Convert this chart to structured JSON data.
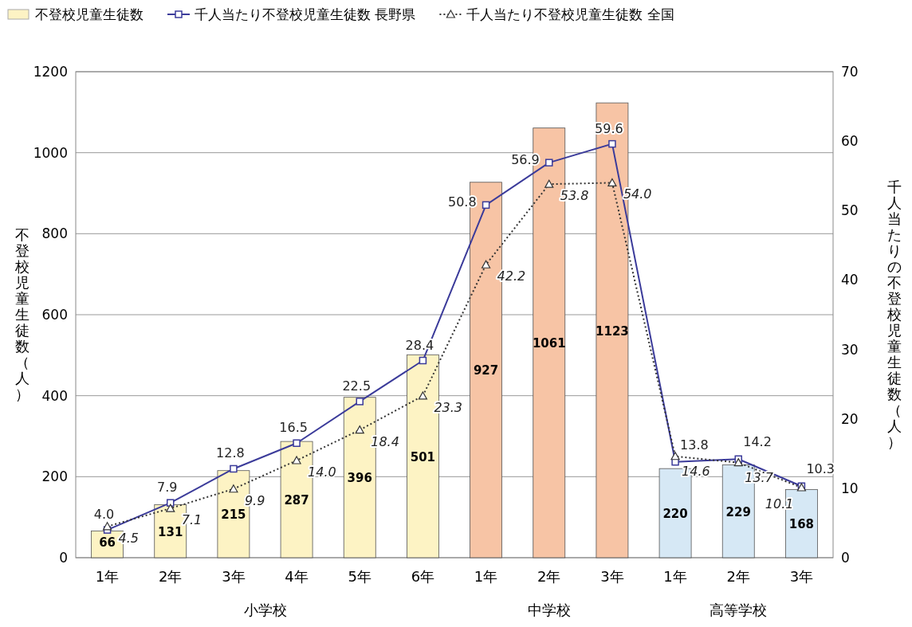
{
  "chart_data": {
    "type": "bar",
    "categories": [
      "1年",
      "2年",
      "3年",
      "4年",
      "5年",
      "6年",
      "1年",
      "2年",
      "3年",
      "1年",
      "2年",
      "3年"
    ],
    "annotations": [
      "小学校",
      "中学校",
      "高等学校"
    ],
    "ylabel": "不登校児童生徒数（人）",
    "y2label": "千人当たりの不登校児童生徒数（人）",
    "series": [
      {
        "name": "不登校児童生徒数",
        "color": "#fdf3c4",
        "colors": [
          "#fdf3c4",
          "#fdf3c4",
          "#fdf3c4",
          "#fdf3c4",
          "#fdf3c4",
          "#fdf3c4",
          "#f7c4a5",
          "#f7c4a5",
          "#f7c4a5",
          "#d6e8f5",
          "#d6e8f5",
          "#d6e8f5"
        ],
        "values": [
          66,
          131,
          215,
          287,
          396,
          501,
          927,
          1061,
          1123,
          220,
          229,
          168
        ]
      },
      {
        "name": "千人当たり不登校児童生徒数 長野県",
        "type": "line",
        "axis": "y2",
        "color": "#3b3b9a",
        "marker": "square",
        "line_style": "solid",
        "values": [
          4.0,
          7.9,
          12.8,
          16.5,
          22.5,
          28.4,
          50.8,
          56.9,
          59.6,
          13.8,
          14.2,
          10.3
        ],
        "value_labels": [
          "4.0",
          "7.9",
          "12.8",
          "16.5",
          "22.5",
          "28.4",
          "50.8",
          "56.9",
          "59.6",
          "13.8",
          "14.2",
          "10.3"
        ]
      },
      {
        "name": "千人当たり不登校児童生徒数 全国",
        "type": "line",
        "axis": "y2",
        "color": "#333333",
        "marker": "triangle",
        "line_style": "dotted",
        "values": [
          4.5,
          7.1,
          9.9,
          14.0,
          18.4,
          23.3,
          42.2,
          53.8,
          54.0,
          14.6,
          13.7,
          10.1
        ],
        "value_labels": [
          "4.5",
          "7.1",
          "9.9",
          "14.0",
          "18.4",
          "23.3",
          "42.2",
          "53.8",
          "54.0",
          "14.6",
          "13.7",
          "10.1"
        ]
      }
    ],
    "data_labels": true,
    "ylim": [
      0,
      1200
    ],
    "yticks": [
      0,
      200,
      400,
      600,
      800,
      1000,
      1200
    ],
    "y2lim": [
      0,
      70
    ],
    "y2ticks": [
      0,
      10,
      20,
      30,
      40,
      50,
      60,
      70
    ],
    "grid": "y",
    "legend": "top"
  }
}
